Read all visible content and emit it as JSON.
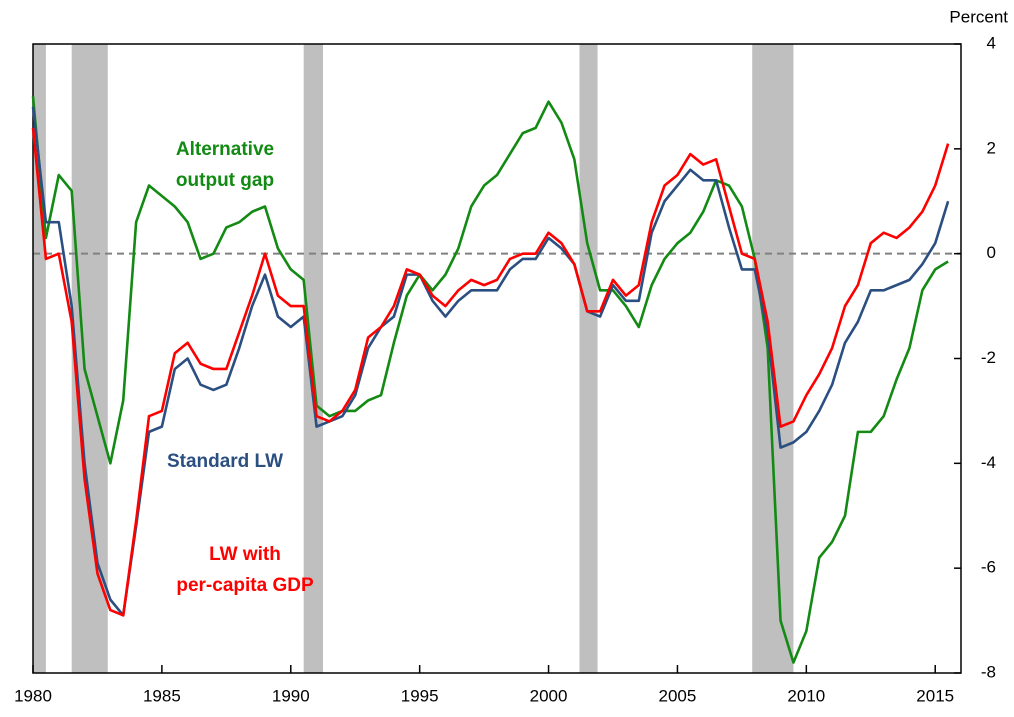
{
  "chart_data": {
    "type": "line",
    "ylabel": "Percent",
    "x": [
      1980,
      1980.5,
      1981,
      1981.5,
      1982,
      1982.5,
      1983,
      1983.5,
      1984,
      1984.5,
      1985,
      1985.5,
      1986,
      1986.5,
      1987,
      1987.5,
      1988,
      1988.5,
      1989,
      1989.5,
      1990,
      1990.5,
      1991,
      1991.5,
      1992,
      1992.5,
      1993,
      1993.5,
      1994,
      1994.5,
      1995,
      1995.5,
      1996,
      1996.5,
      1997,
      1997.5,
      1998,
      1998.5,
      1999,
      1999.5,
      2000,
      2000.5,
      2001,
      2001.5,
      2002,
      2002.5,
      2003,
      2003.5,
      2004,
      2004.5,
      2005,
      2005.5,
      2006,
      2006.5,
      2007,
      2007.5,
      2008,
      2008.5,
      2009,
      2009.5,
      2010,
      2010.5,
      2011,
      2011.5,
      2012,
      2012.5,
      2013,
      2013.5,
      2014,
      2014.5,
      2015,
      2015.5
    ],
    "series": [
      {
        "name": [
          "Alternative",
          "output gap"
        ],
        "color": "#138a13",
        "values": [
          3.0,
          0.3,
          1.5,
          1.2,
          -2.2,
          -3.1,
          -4.0,
          -2.8,
          0.6,
          1.3,
          1.1,
          0.9,
          0.6,
          -0.1,
          0.0,
          0.5,
          0.6,
          0.8,
          0.9,
          0.1,
          -0.3,
          -0.5,
          -2.9,
          -3.1,
          -3.0,
          -3.0,
          -2.8,
          -2.7,
          -1.7,
          -0.8,
          -0.4,
          -0.7,
          -0.4,
          0.1,
          0.9,
          1.3,
          1.5,
          1.9,
          2.3,
          2.4,
          2.9,
          2.5,
          1.8,
          0.2,
          -0.7,
          -0.7,
          -1.0,
          -1.4,
          -0.6,
          -0.1,
          0.2,
          0.4,
          0.8,
          1.4,
          1.3,
          0.9,
          -0.1,
          -1.8,
          -7.0,
          -7.8,
          -7.2,
          -5.8,
          -5.5,
          -5.0,
          -3.4,
          -3.4,
          -3.1,
          -2.4,
          -1.8,
          -0.7,
          -0.3,
          -0.15
        ]
      },
      {
        "name": [
          "Standard LW"
        ],
        "color": "#2b4f81",
        "values": [
          2.8,
          0.6,
          0.6,
          -1.0,
          -4.0,
          -5.9,
          -6.6,
          -6.9,
          -5.2,
          -3.4,
          -3.3,
          -2.2,
          -2.0,
          -2.5,
          -2.6,
          -2.5,
          -1.8,
          -1.0,
          -0.4,
          -1.2,
          -1.4,
          -1.2,
          -3.3,
          -3.2,
          -3.1,
          -2.7,
          -1.8,
          -1.4,
          -1.2,
          -0.4,
          -0.4,
          -0.9,
          -1.2,
          -0.9,
          -0.7,
          -0.7,
          -0.7,
          -0.3,
          -0.1,
          -0.1,
          0.3,
          0.1,
          -0.2,
          -1.1,
          -1.2,
          -0.6,
          -0.9,
          -0.9,
          0.4,
          1.0,
          1.3,
          1.6,
          1.4,
          1.4,
          0.5,
          -0.3,
          -0.3,
          -1.5,
          -3.7,
          -3.6,
          -3.4,
          -3.0,
          -2.5,
          -1.7,
          -1.3,
          -0.7,
          -0.7,
          -0.6,
          -0.5,
          -0.2,
          0.2,
          1.0
        ]
      },
      {
        "name": [
          "LW with",
          "per-capita GDP"
        ],
        "color": "#ff0000",
        "values": [
          2.4,
          -0.1,
          0.0,
          -1.3,
          -4.3,
          -6.1,
          -6.8,
          -6.9,
          -5.1,
          -3.1,
          -3.0,
          -1.9,
          -1.7,
          -2.1,
          -2.2,
          -2.2,
          -1.5,
          -0.8,
          0.0,
          -0.8,
          -1.0,
          -1.0,
          -3.1,
          -3.2,
          -3.0,
          -2.6,
          -1.6,
          -1.4,
          -1.0,
          -0.3,
          -0.4,
          -0.8,
          -1.0,
          -0.7,
          -0.5,
          -0.6,
          -0.5,
          -0.1,
          0.0,
          0.0,
          0.4,
          0.2,
          -0.2,
          -1.1,
          -1.1,
          -0.5,
          -0.8,
          -0.6,
          0.6,
          1.3,
          1.5,
          1.9,
          1.7,
          1.8,
          0.9,
          0.0,
          -0.1,
          -1.3,
          -3.3,
          -3.2,
          -2.7,
          -2.3,
          -1.8,
          -1.0,
          -0.6,
          0.2,
          0.4,
          0.3,
          0.5,
          0.8,
          1.3,
          2.1
        ]
      }
    ],
    "recessions": [
      [
        1980,
        1980.5
      ],
      [
        1981.5,
        1982.9
      ],
      [
        1990.5,
        1991.25
      ],
      [
        2001.2,
        2001.9
      ],
      [
        2007.9,
        2009.5
      ]
    ],
    "recession_color": "#bfbfbf",
    "reference_line": 0,
    "xlim": [
      1980,
      2016
    ],
    "xticks": [
      1980,
      1985,
      1990,
      1995,
      2000,
      2005,
      2010,
      2015
    ],
    "ylim": [
      -8,
      4
    ],
    "yticks": [
      -8,
      -6,
      -4,
      -2,
      0,
      2,
      4
    ]
  }
}
